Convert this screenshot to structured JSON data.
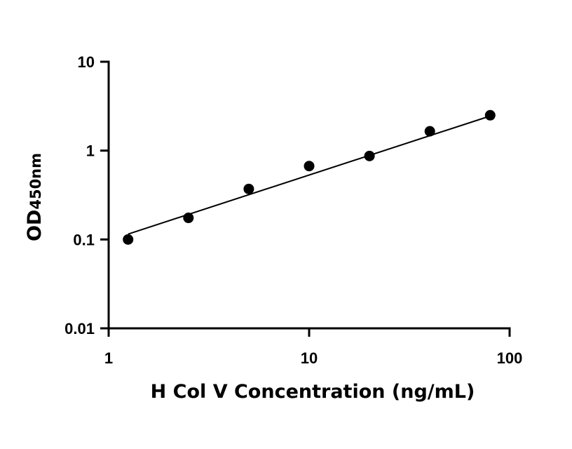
{
  "chart_data": {
    "type": "scatter",
    "title": "",
    "xlabel": "H Col V Concentration (ng/mL)",
    "ylabel_main": "OD",
    "ylabel_sub": "450nm",
    "x_scale": "log",
    "y_scale": "log",
    "xlim": [
      1,
      100
    ],
    "ylim": [
      0.01,
      10
    ],
    "x_ticks": [
      1,
      10,
      100
    ],
    "x_tick_labels": [
      "1",
      "10",
      "100"
    ],
    "y_ticks": [
      0.01,
      0.1,
      1,
      10
    ],
    "y_tick_labels": [
      "0.01",
      "0.1",
      "1",
      "10"
    ],
    "grid": false,
    "points": {
      "x": [
        1.25,
        2.5,
        5,
        10,
        20,
        40,
        80
      ],
      "y": [
        0.1,
        0.175,
        0.37,
        0.67,
        0.87,
        1.65,
        2.5
      ]
    },
    "fit_line": {
      "x": [
        1.25,
        80
      ],
      "y": [
        0.115,
        2.45
      ]
    }
  }
}
